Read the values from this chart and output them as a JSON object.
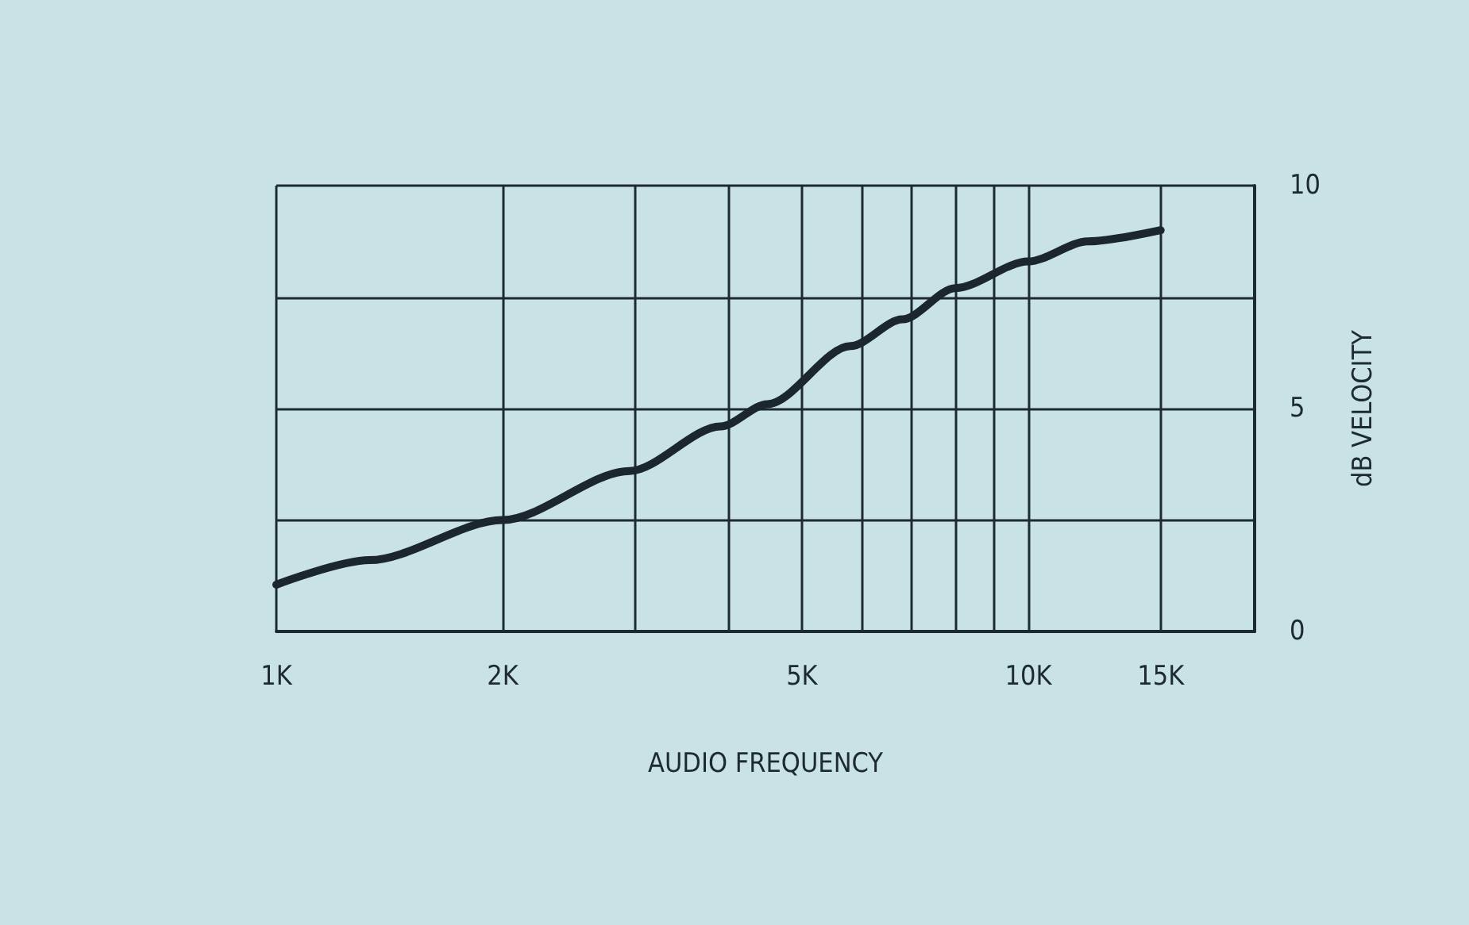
{
  "chart_data": {
    "type": "line",
    "xlabel": "AUDIO FREQUENCY",
    "ylabel": "dB VELOCITY",
    "x": [
      1000,
      1330,
      2000,
      2950,
      3900,
      4500,
      5800,
      6800,
      8000,
      10000,
      12000,
      15000
    ],
    "values": [
      1.05,
      1.6,
      2.5,
      3.6,
      4.6,
      5.1,
      6.4,
      7.0,
      7.7,
      8.3,
      8.75,
      9.0
    ],
    "color": "#1b2630",
    "xlim": [
      1000,
      20000
    ],
    "xticks": [
      {
        "value": 1000,
        "label": "1K"
      },
      {
        "value": 2000,
        "label": "2K"
      },
      {
        "value": 3000,
        "label": null
      },
      {
        "value": 4000,
        "label": null
      },
      {
        "value": 5000,
        "label": "5K"
      },
      {
        "value": 6000,
        "label": null
      },
      {
        "value": 7000,
        "label": null
      },
      {
        "value": 8000,
        "label": null
      },
      {
        "value": 9000,
        "label": null
      },
      {
        "value": 10000,
        "label": "10K"
      },
      {
        "value": 15000,
        "label": "15K"
      }
    ],
    "ylim": [
      0,
      10
    ],
    "yticks": [
      0,
      {
        "value": 2.5,
        "label": null
      },
      5,
      {
        "value": 7.5,
        "label": null
      },
      10
    ],
    "log": "x",
    "grid": true,
    "marker": "none",
    "line_style": "solid"
  }
}
